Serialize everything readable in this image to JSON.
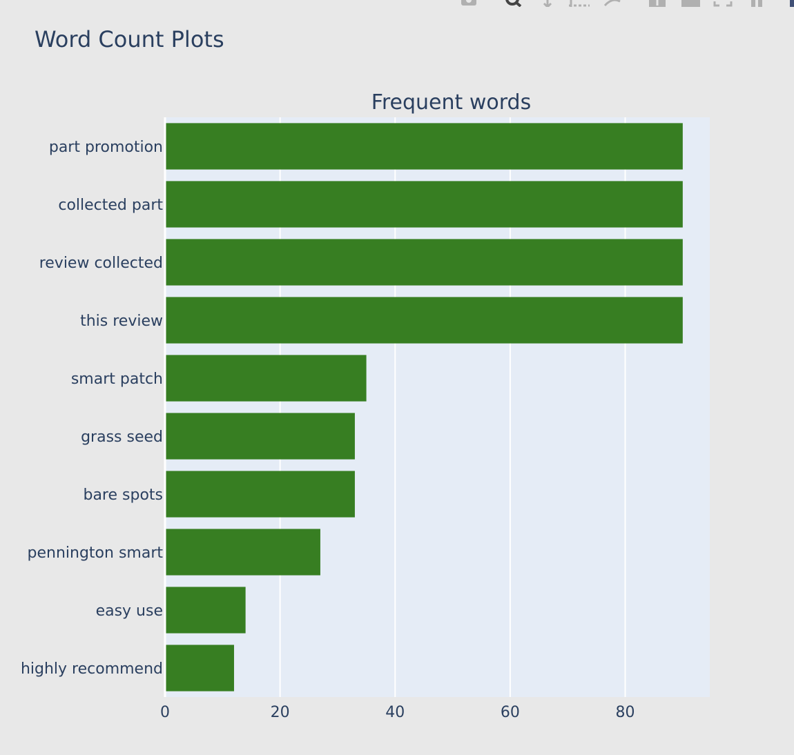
{
  "page": {
    "title": "Word Count Plots"
  },
  "modebar": {
    "icons": [
      "camera-icon",
      "zoom-icon",
      "pan-icon",
      "box-select-icon",
      "lasso-select-icon",
      "zoom-in-icon",
      "zoom-out-icon",
      "autoscale-icon",
      "reset-axes-icon",
      "plotly-logo-icon"
    ]
  },
  "colors": {
    "background": "#e8e8e8",
    "plot_background": "#e5ecf6",
    "bar": "#377e22",
    "grid": "#ffffff",
    "text": "#2a3f5f"
  },
  "chart_data": {
    "type": "bar",
    "orientation": "horizontal",
    "title": "Frequent words",
    "xlabel": "",
    "ylabel": "",
    "categories": [
      "part promotion",
      "collected part",
      "review collected",
      "this review",
      "smart patch",
      "grass seed",
      "bare spots",
      "pennington smart",
      "easy use",
      "highly recommend"
    ],
    "values": [
      90,
      90,
      90,
      90,
      35,
      33,
      33,
      27,
      14,
      12
    ],
    "xlim": [
      0,
      94.7
    ],
    "xticks": [
      0,
      20,
      40,
      60,
      80
    ],
    "grid": true,
    "legend": false
  }
}
